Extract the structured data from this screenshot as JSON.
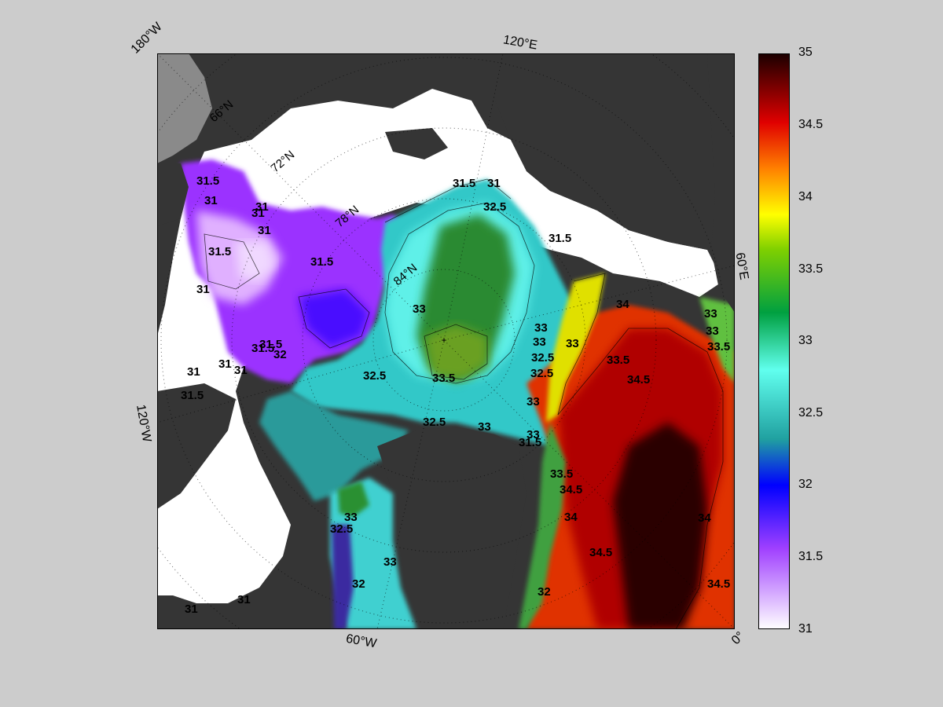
{
  "map": {
    "colors": {
      "land": "#353535",
      "ice": "#ffffff",
      "background": "#cccccc",
      "missing": "#8a8a8a"
    },
    "longitude_labels": {
      "lon_180w": "180°W",
      "lon_120e": "120°E",
      "lon_60e": "60°E",
      "lon_120w": "120°W",
      "lon_60w": "60°W",
      "lon_0": "0°"
    },
    "latitude_labels": [
      "66°N",
      "72°N",
      "78°N",
      "84°N"
    ],
    "contour_labels": [
      "31.5",
      "31",
      "31",
      "31",
      "31.5",
      "31.5",
      "31",
      "31.5",
      "31.5",
      "32",
      "31",
      "31",
      "31",
      "31.5",
      "31",
      "31.5",
      "31",
      "32.5",
      "33",
      "33.5",
      "32.5",
      "32.5",
      "33",
      "32.5",
      "33",
      "33",
      "33",
      "33",
      "32.5",
      "33",
      "33.5",
      "34.5",
      "34",
      "33",
      "33.5",
      "34",
      "31.5",
      "33",
      "31.5",
      "34",
      "34.5",
      "34.5",
      "33.5",
      "34.5",
      "31",
      "31",
      "32.5",
      "33",
      "33",
      "32",
      "32"
    ]
  },
  "colorbar": {
    "ticks": [
      "35",
      "34.5",
      "34",
      "33.5",
      "33",
      "32.5",
      "32",
      "31.5",
      "31"
    ],
    "stops": [
      "#ffffff",
      "#8a00ff",
      "#0000ff",
      "#30d0d0",
      "#60ffee",
      "#007a20",
      "#ffff00",
      "#ff6a00",
      "#cc0000",
      "#1a0000"
    ]
  }
}
